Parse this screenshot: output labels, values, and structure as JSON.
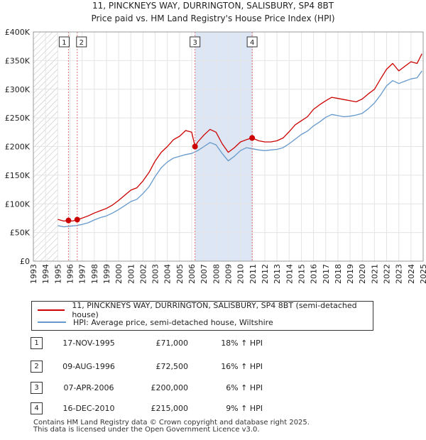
{
  "title_line1": "11, PINCKNEYS WAY, DURRINGTON, SALISBURY, SP4 8BT",
  "title_line2": "Price paid vs. HM Land Registry's House Price Index (HPI)",
  "colors": {
    "property": "#cc0000",
    "hpi": "#6699cc",
    "shade": "#dde6f5",
    "marker_line": "#e07070",
    "hatch": "#bbbbbb"
  },
  "legend": {
    "property_label": "11, PINCKNEYS WAY, DURRINGTON, SALISBURY, SP4 8BT (semi-detached house)",
    "hpi_label": "HPI: Average price, semi-detached house, Wiltshire"
  },
  "sales": [
    {
      "num": "1",
      "date": "17-NOV-1995",
      "price": "£71,000",
      "hpi": "18% ↑ HPI",
      "year": 1995.88,
      "value": 71000
    },
    {
      "num": "2",
      "date": "09-AUG-1996",
      "price": "£72,500",
      "hpi": "16% ↑ HPI",
      "year": 1996.6,
      "value": 72500
    },
    {
      "num": "3",
      "date": "07-APR-2006",
      "price": "£200,000",
      "hpi": "6% ↑ HPI",
      "year": 2006.27,
      "value": 200000
    },
    {
      "num": "4",
      "date": "16-DEC-2010",
      "price": "£215,000",
      "hpi": "9% ↑ HPI",
      "year": 2010.96,
      "value": 215000
    }
  ],
  "footer_line1": "Contains HM Land Registry data © Crown copyright and database right 2025.",
  "footer_line2": "This data is licensed under the Open Government Licence v3.0.",
  "chart_data": {
    "type": "line",
    "title": "Price paid vs. HM Land Registry's House Price Index (HPI)",
    "xlabel": "",
    "ylabel": "",
    "xlim": [
      1993,
      2025
    ],
    "ylim": [
      0,
      400000
    ],
    "x_ticks": [
      "1993",
      "1994",
      "1995",
      "1996",
      "1997",
      "1998",
      "1999",
      "2000",
      "2001",
      "2002",
      "2003",
      "2004",
      "2005",
      "2006",
      "2007",
      "2008",
      "2009",
      "2010",
      "2011",
      "2012",
      "2013",
      "2014",
      "2015",
      "2016",
      "2017",
      "2018",
      "2019",
      "2020",
      "2021",
      "2022",
      "2023",
      "2024",
      "2025"
    ],
    "y_ticks": [
      {
        "value": 0,
        "label": "£0"
      },
      {
        "value": 50000,
        "label": "£50K"
      },
      {
        "value": 100000,
        "label": "£100K"
      },
      {
        "value": 150000,
        "label": "£150K"
      },
      {
        "value": 200000,
        "label": "£200K"
      },
      {
        "value": 250000,
        "label": "£250K"
      },
      {
        "value": 300000,
        "label": "£300K"
      },
      {
        "value": 350000,
        "label": "£350K"
      },
      {
        "value": 400000,
        "label": "£400K"
      }
    ],
    "hatched_region": [
      1993,
      1995
    ],
    "shaded_region": [
      2006.27,
      2010.96
    ],
    "series": [
      {
        "name": "11, PINCKNEYS WAY, DURRINGTON, SALISBURY, SP4 8BT (semi-detached house)",
        "x": [
          1995.0,
          1995.5,
          1995.88,
          1996.2,
          1996.6,
          1997.0,
          1997.5,
          1998.0,
          1998.5,
          1999.0,
          1999.5,
          2000.0,
          2000.5,
          2001.0,
          2001.5,
          2002.0,
          2002.5,
          2003.0,
          2003.5,
          2004.0,
          2004.5,
          2005.0,
          2005.5,
          2006.0,
          2006.27,
          2006.5,
          2007.0,
          2007.5,
          2008.0,
          2008.5,
          2009.0,
          2009.5,
          2010.0,
          2010.5,
          2010.96,
          2011.5,
          2012.0,
          2012.5,
          2013.0,
          2013.5,
          2014.0,
          2014.5,
          2015.0,
          2015.5,
          2016.0,
          2016.5,
          2017.0,
          2017.5,
          2018.0,
          2018.5,
          2019.0,
          2019.5,
          2020.0,
          2020.5,
          2021.0,
          2021.5,
          2022.0,
          2022.5,
          2023.0,
          2023.5,
          2024.0,
          2024.5,
          2024.9
        ],
        "values": [
          73000,
          70000,
          71000,
          70000,
          72500,
          75000,
          79000,
          84000,
          88000,
          92000,
          98000,
          106000,
          115000,
          124000,
          128000,
          140000,
          155000,
          175000,
          190000,
          200000,
          212000,
          218000,
          228000,
          225000,
          200000,
          208000,
          220000,
          230000,
          225000,
          205000,
          190000,
          198000,
          208000,
          212000,
          215000,
          210000,
          208000,
          208000,
          210000,
          215000,
          226000,
          238000,
          245000,
          252000,
          265000,
          273000,
          280000,
          286000,
          284000,
          282000,
          280000,
          278000,
          283000,
          292000,
          300000,
          318000,
          335000,
          345000,
          332000,
          340000,
          348000,
          345000,
          362000
        ]
      },
      {
        "name": "HPI: Average price, semi-detached house, Wiltshire",
        "x": [
          1995.0,
          1995.5,
          1996.0,
          1996.5,
          1997.0,
          1997.5,
          1998.0,
          1998.5,
          1999.0,
          1999.5,
          2000.0,
          2000.5,
          2001.0,
          2001.5,
          2002.0,
          2002.5,
          2003.0,
          2003.5,
          2004.0,
          2004.5,
          2005.0,
          2005.5,
          2006.0,
          2006.5,
          2007.0,
          2007.5,
          2008.0,
          2008.5,
          2009.0,
          2009.5,
          2010.0,
          2010.5,
          2011.0,
          2011.5,
          2012.0,
          2012.5,
          2013.0,
          2013.5,
          2014.0,
          2014.5,
          2015.0,
          2015.5,
          2016.0,
          2016.5,
          2017.0,
          2017.5,
          2018.0,
          2018.5,
          2019.0,
          2019.5,
          2020.0,
          2020.5,
          2021.0,
          2021.5,
          2022.0,
          2022.5,
          2023.0,
          2023.5,
          2024.0,
          2024.5,
          2024.9
        ],
        "values": [
          62000,
          60000,
          61000,
          62000,
          64000,
          67000,
          72000,
          76000,
          79000,
          84000,
          90000,
          97000,
          104000,
          108000,
          118000,
          130000,
          148000,
          163000,
          173000,
          180000,
          183000,
          186000,
          188000,
          193000,
          200000,
          207000,
          203000,
          188000,
          175000,
          183000,
          193000,
          198000,
          196000,
          194000,
          193000,
          194000,
          195000,
          198000,
          205000,
          213000,
          221000,
          227000,
          236000,
          243000,
          251000,
          256000,
          254000,
          252000,
          253000,
          255000,
          258000,
          266000,
          276000,
          290000,
          306000,
          315000,
          310000,
          314000,
          318000,
          320000,
          332000
        ]
      }
    ]
  }
}
